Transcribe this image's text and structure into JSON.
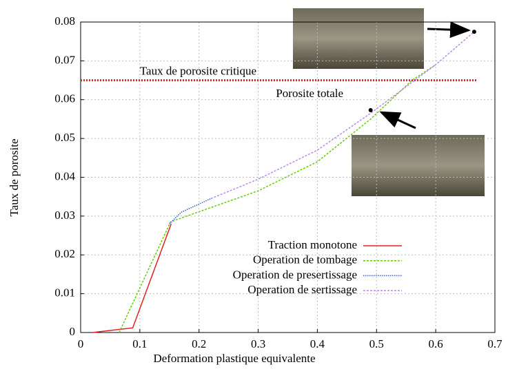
{
  "chart_data": {
    "type": "line",
    "xlabel": "Deformation plastique equivalente",
    "ylabel": "Taux de porosite",
    "xlim": [
      0,
      0.7
    ],
    "ylim": [
      0,
      0.08
    ],
    "xticks": [
      0,
      0.1,
      0.2,
      0.3,
      0.4,
      0.5,
      0.6,
      0.7
    ],
    "yticks": [
      0,
      0.01,
      0.02,
      0.03,
      0.04,
      0.05,
      0.06,
      0.07,
      0.08
    ],
    "grid": true,
    "series": [
      {
        "name": "Traction monotone",
        "color": "#e02020",
        "style": "solid",
        "x": [
          0.02,
          0.065,
          0.088,
          0.153
        ],
        "values": [
          0,
          0.0008,
          0.0012,
          0.028
        ]
      },
      {
        "name": "Operation de tombage",
        "color": "#66cc00",
        "style": "dashed",
        "x": [
          0.065,
          0.152,
          0.17,
          0.3,
          0.4,
          0.49,
          0.56,
          0.6
        ],
        "values": [
          0,
          0.0285,
          0.0295,
          0.0365,
          0.044,
          0.055,
          0.065,
          0.069
        ]
      },
      {
        "name": "Operation de presertissage",
        "color": "#3355cc",
        "style": "dotted",
        "x": [
          0.15,
          0.17,
          0.22
        ],
        "values": [
          0.028,
          0.031,
          0.0345
        ]
      },
      {
        "name": "Operation de sertissage",
        "color": "#bb88ee",
        "style": "dashed",
        "x": [
          0.22,
          0.3,
          0.4,
          0.49,
          0.6,
          0.665
        ],
        "values": [
          0.0345,
          0.0395,
          0.047,
          0.0565,
          0.069,
          0.0775
        ]
      }
    ],
    "critical_level": {
      "label": "Taux de porosite critique",
      "value": 0.065,
      "color": "#e02020",
      "xlim": [
        0,
        0.67
      ]
    },
    "points": {
      "label": "Porosite totale",
      "x": [
        0.49,
        0.665
      ],
      "values": [
        0.0573,
        0.0775
      ]
    }
  }
}
